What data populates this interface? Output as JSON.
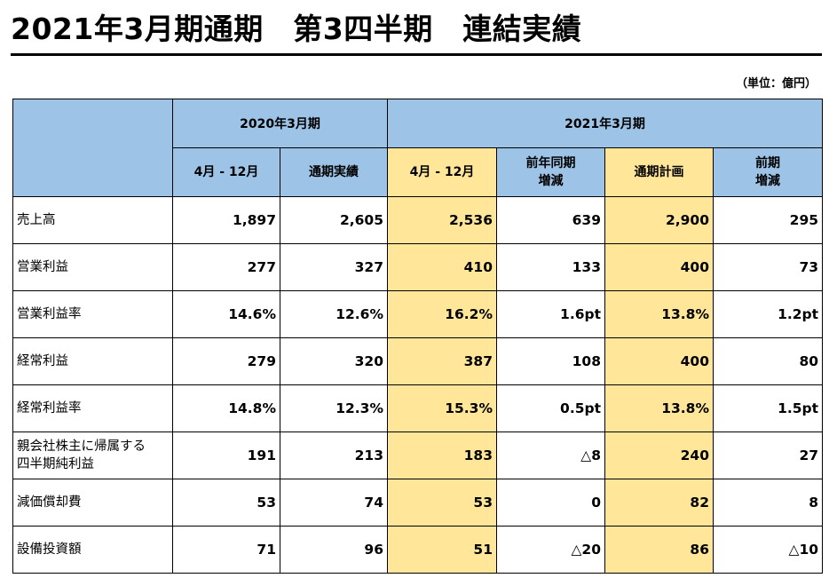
{
  "title": "2021年3月期通期　第3四半期　連結実績",
  "unit": "（単位：億円）",
  "groups": {
    "g2020": "2020年3月期",
    "g2021": "2021年3月期"
  },
  "columns": [
    "4月 - 12月",
    "通期実績",
    "4月 - 12月",
    "前年同期\n増減",
    "通期計画",
    "前期\n増減"
  ],
  "rows": [
    {
      "label": "売上高",
      "values": [
        "1,897",
        "2,605",
        "2,536",
        "639",
        "2,900",
        "295"
      ]
    },
    {
      "label": "営業利益",
      "values": [
        "277",
        "327",
        "410",
        "133",
        "400",
        "73"
      ]
    },
    {
      "label": "営業利益率",
      "values": [
        "14.6%",
        "12.6%",
        "16.2%",
        "1.6pt",
        "13.8%",
        "1.2pt"
      ]
    },
    {
      "label": "経常利益",
      "values": [
        "279",
        "320",
        "387",
        "108",
        "400",
        "80"
      ]
    },
    {
      "label": "経常利益率",
      "values": [
        "14.8%",
        "12.3%",
        "15.3%",
        "0.5pt",
        "13.8%",
        "1.5pt"
      ]
    },
    {
      "label": "親会社株主に帰属する\n四半期純利益",
      "values": [
        "191",
        "213",
        "183",
        "△8",
        "240",
        "27"
      ]
    },
    {
      "label": "減価償却費",
      "values": [
        "53",
        "74",
        "53",
        "0",
        "82",
        "8"
      ]
    },
    {
      "label": "設備投資額",
      "values": [
        "71",
        "96",
        "51",
        "△20",
        "86",
        "△10"
      ]
    }
  ],
  "colors": {
    "header_blue": "#9DC3E6",
    "highlight_yellow": "#FFE699"
  }
}
